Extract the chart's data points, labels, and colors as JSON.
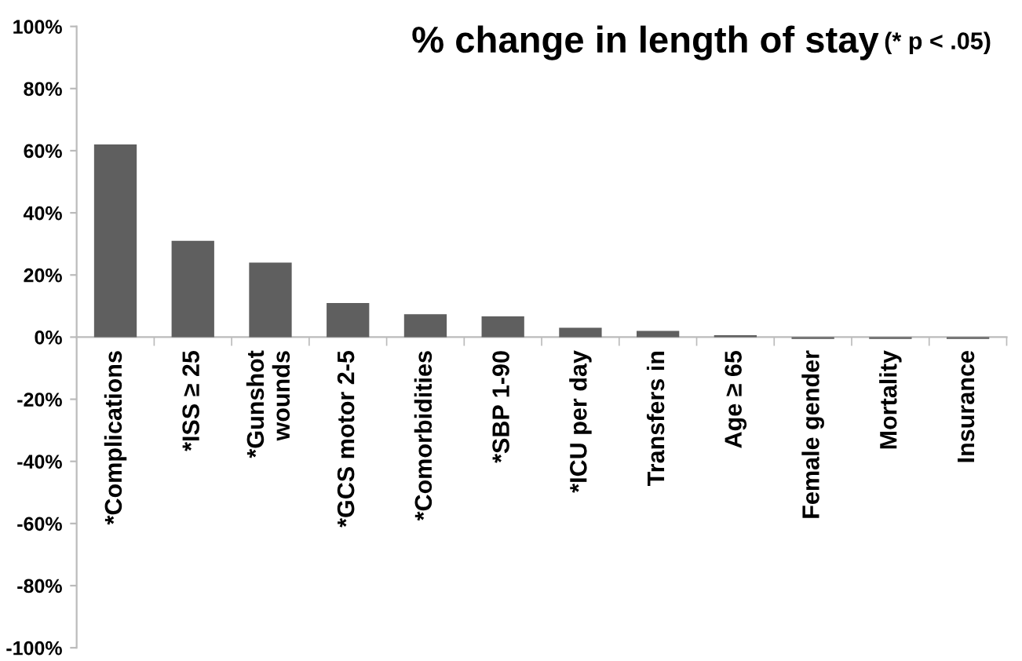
{
  "chart_data": {
    "type": "bar",
    "title": "% change in length of stay",
    "subtitle": "(* p < .05)",
    "categories": [
      "*Complications",
      "*ISS ≥ 25",
      "*Gunshot\nwounds",
      "*GCS motor 2-5",
      "*Comorbidities",
      "*SBP 1-90",
      "*ICU per day",
      "Transfers in",
      "Age ≥ 65",
      "Female gender",
      "Mortality",
      "Insurance"
    ],
    "values": [
      62,
      31,
      24,
      11,
      7.4,
      6.7,
      3,
      2,
      0.6,
      -0.6,
      -0.6,
      -0.6
    ],
    "color": "#5f5f5f",
    "ylim": [
      -100,
      100
    ],
    "yticks": [
      {
        "value": -100,
        "label": "-100%"
      },
      {
        "value": -80,
        "label": "-80%"
      },
      {
        "value": -60,
        "label": "-60%"
      },
      {
        "value": -40,
        "label": "-40%"
      },
      {
        "value": -20,
        "label": "-20%"
      },
      {
        "value": 0,
        "label": "0%"
      },
      {
        "value": 20,
        "label": "20%"
      },
      {
        "value": 40,
        "label": "40%"
      },
      {
        "value": 60,
        "label": "60%"
      },
      {
        "value": 80,
        "label": "80%"
      },
      {
        "value": 100,
        "label": "100%"
      }
    ],
    "grid": false,
    "legend": false
  }
}
